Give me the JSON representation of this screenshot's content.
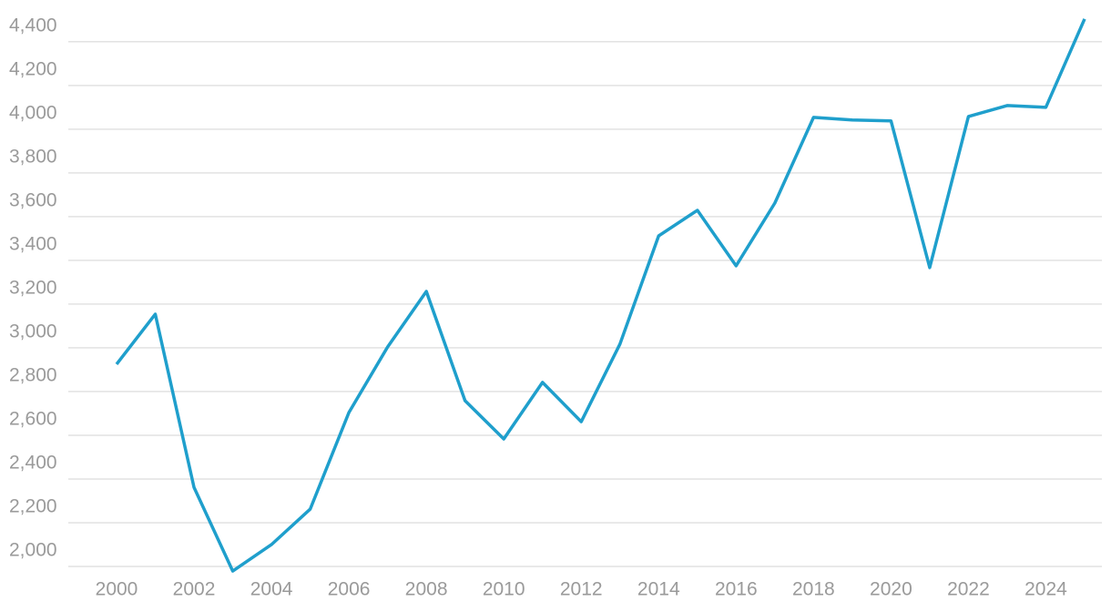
{
  "chart_data": {
    "type": "line",
    "x": [
      2000,
      2001,
      2002,
      2003,
      2004,
      2005,
      2006,
      2007,
      2008,
      2009,
      2010,
      2011,
      2012,
      2013,
      2014,
      2015,
      2016,
      2017,
      2018,
      2019,
      2020,
      2021,
      2022,
      2023,
      2024,
      2025
    ],
    "series": [
      {
        "color": "#1f9fcc",
        "values": [
          2925,
          3154,
          2362,
          1979,
          2100,
          2262,
          2704,
          3004,
          3258,
          2758,
          2583,
          2842,
          2662,
          3017,
          3512,
          3629,
          3375,
          3662,
          4054,
          4042,
          4038,
          3367,
          4058,
          4108,
          4100,
          4504
        ]
      }
    ],
    "xlim": [
      2000,
      2025
    ],
    "xticks": [
      2000,
      2002,
      2004,
      2006,
      2008,
      2010,
      2012,
      2014,
      2016,
      2018,
      2020,
      2022,
      2024
    ],
    "ylim": [
      1950,
      4520
    ],
    "yticks": [
      {
        "value": 2000,
        "label": "2,000"
      },
      {
        "value": 2200,
        "label": "2,200"
      },
      {
        "value": 2400,
        "label": "2,400"
      },
      {
        "value": 2600,
        "label": "2,600"
      },
      {
        "value": 2800,
        "label": "2,800"
      },
      {
        "value": 3000,
        "label": "3,000"
      },
      {
        "value": 3200,
        "label": "3,200"
      },
      {
        "value": 3400,
        "label": "3,400"
      },
      {
        "value": 3600,
        "label": "3,600"
      },
      {
        "value": 3800,
        "label": "3,800"
      },
      {
        "value": 4000,
        "label": "4,000"
      },
      {
        "value": 4200,
        "label": "4,200"
      },
      {
        "value": 4400,
        "label": "4,400"
      }
    ],
    "grid": true
  }
}
